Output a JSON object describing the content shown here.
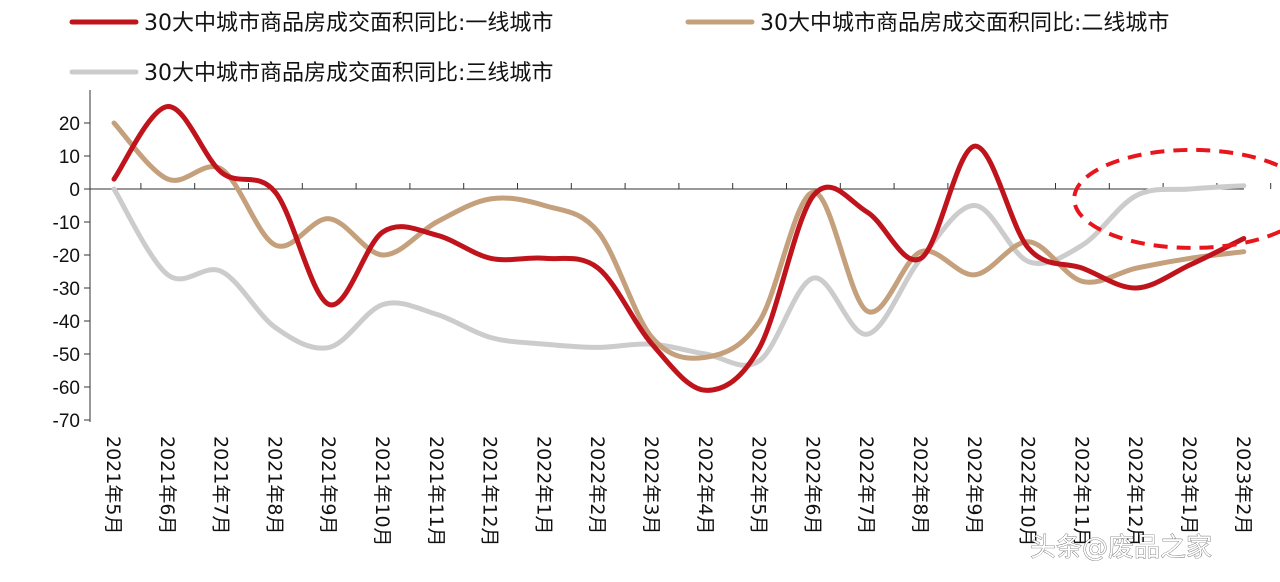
{
  "chart_data": {
    "type": "line",
    "title": "",
    "xlabel": "",
    "ylabel": "",
    "ylim": [
      -70,
      25
    ],
    "yticks": [
      20,
      10,
      0,
      -10,
      -20,
      -30,
      -40,
      -50,
      -60,
      -70
    ],
    "categories": [
      "2021年5月",
      "2021年6月",
      "2021年7月",
      "2021年8月",
      "2021年9月",
      "2021年10月",
      "2021年11月",
      "2021年12月",
      "2022年1月",
      "2022年2月",
      "2022年3月",
      "2022年4月",
      "2022年5月",
      "2022年6月",
      "2022年7月",
      "2022年8月",
      "2022年9月",
      "2022年10月",
      "2022年11月",
      "2022年12月",
      "2023年1月",
      "2023年2月"
    ],
    "legend_position": "top",
    "grid": false,
    "series": [
      {
        "name": "30大中城市商品房成交面积同比:一线城市",
        "color": "#c0141c",
        "values": [
          3,
          25,
          5,
          -1,
          -35,
          -13,
          -14,
          -21,
          -21,
          -24,
          -47,
          -61,
          -48,
          -2,
          -7,
          -21,
          13,
          -18,
          -24,
          -30,
          -23,
          -15
        ]
      },
      {
        "name": "30大中城市商品房成交面积同比:二线城市",
        "color": "#c4a07c",
        "values": [
          20,
          3,
          6,
          -17,
          -9,
          -20,
          -10,
          -3,
          -5,
          -13,
          -45,
          -51,
          -40,
          -1,
          -37,
          -19,
          -26,
          -16,
          -28,
          -24,
          -21,
          -19
        ]
      },
      {
        "name": "30大中城市商品房成交面积同比:三线城市",
        "color": "#cccccc",
        "values": [
          0,
          -26,
          -25,
          -42,
          -48,
          -35,
          -38,
          -45,
          -47,
          -48,
          -47,
          -50,
          -52,
          -27,
          -44,
          -21,
          -5,
          -22,
          -17,
          -2,
          0,
          1
        ]
      }
    ],
    "annotation": {
      "type": "dashed-ellipse",
      "color": "#e8161c",
      "from_category": "2022年12月",
      "to_category": "2023年2月",
      "y_center": -3
    }
  },
  "watermark": {
    "text": "头条@废品之家"
  },
  "colors": {
    "axis": "#333333",
    "text": "#111111"
  }
}
